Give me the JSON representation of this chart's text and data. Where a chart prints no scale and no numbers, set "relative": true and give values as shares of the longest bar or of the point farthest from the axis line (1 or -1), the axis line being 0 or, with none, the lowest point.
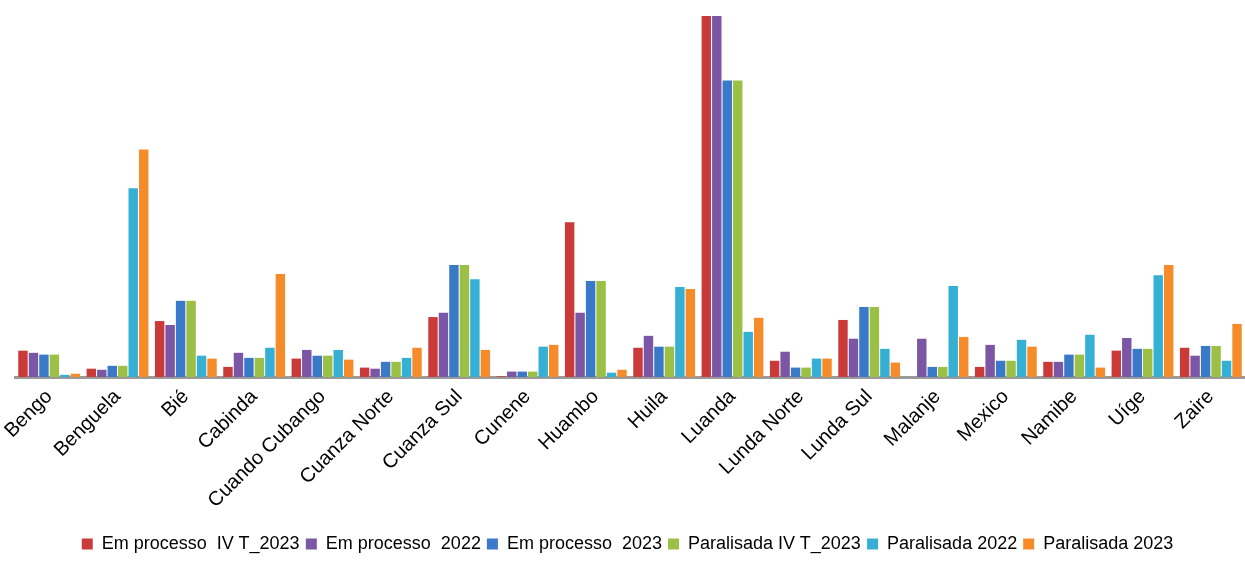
{
  "chart_data": {
    "type": "bar",
    "relative": true,
    "legend": "bottom",
    "grid": false,
    "categories": [
      "Bengo",
      "Benguela",
      "Bié",
      "Cabinda",
      "Cuando Cubango",
      "Cuanza Norte",
      "Cuanza Sul",
      "Cunene",
      "Huambo",
      "Huila",
      "Luanda",
      "Lunda Norte",
      "Lunda Sul",
      "Malanje",
      "Mexico",
      "Namibe",
      "Uíge",
      "Zaire"
    ],
    "series": [
      {
        "name": "Em processo  IV T_2023",
        "color": "#c93a38",
        "values": [
          0.073,
          0.023,
          0.155,
          0.028,
          0.051,
          0.026,
          0.166,
          0.002,
          0.429,
          0.081,
          1,
          0.045,
          0.158,
          null,
          0.028,
          0.042,
          0.073,
          0.081
        ]
      },
      {
        "name": "Em processo  2022",
        "color": "#7b56a5",
        "values": [
          0.067,
          0.02,
          0.144,
          0.067,
          0.075,
          0.023,
          0.178,
          0.015,
          0.178,
          0.114,
          1,
          0.07,
          0.106,
          0.106,
          0.089,
          0.042,
          0.108,
          0.059
        ]
      },
      {
        "name": "Em processo  2023",
        "color": "#3a78c8",
        "values": [
          0.062,
          0.031,
          0.211,
          0.053,
          0.059,
          0.042,
          0.31,
          0.015,
          0.266,
          0.084,
          0.821,
          0.026,
          0.194,
          0.028,
          0.045,
          0.062,
          0.078,
          0.086
        ]
      },
      {
        "name": "Paralisada IV T_2023",
        "color": "#9bc045",
        "values": [
          0.062,
          0.031,
          0.211,
          0.053,
          0.059,
          0.042,
          0.31,
          0.015,
          0.266,
          0.084,
          0.821,
          0.026,
          0.194,
          0.028,
          0.045,
          0.062,
          0.078,
          0.086
        ]
      },
      {
        "name": "Paralisada 2022",
        "color": "#35b0d4",
        "values": [
          0.006,
          0.523,
          0.059,
          0.081,
          0.075,
          0.053,
          0.271,
          0.084,
          0.012,
          0.249,
          0.125,
          0.051,
          0.078,
          0.252,
          0.103,
          0.117,
          0.282,
          0.045
        ]
      },
      {
        "name": "Paralisada 2023",
        "color": "#f68b2a",
        "values": [
          0.009,
          0.63,
          0.051,
          0.285,
          0.048,
          0.081,
          0.075,
          0.089,
          0.02,
          0.244,
          0.164,
          0.051,
          0.04,
          0.111,
          0.084,
          0.026,
          0.31,
          0.147
        ]
      }
    ]
  }
}
